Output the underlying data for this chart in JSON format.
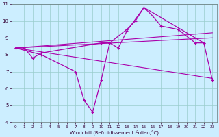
{
  "xlabel": "Windchill (Refroidissement éolien,°C)",
  "bg_color": "#cceeff",
  "line_color": "#aa00aa",
  "grid_color": "#99cccc",
  "ylim": [
    4,
    11
  ],
  "xlim": [
    -0.5,
    23.5
  ],
  "yticks": [
    4,
    5,
    6,
    7,
    8,
    9,
    10,
    11
  ],
  "xticks": [
    0,
    1,
    2,
    3,
    4,
    5,
    6,
    7,
    8,
    9,
    10,
    11,
    12,
    13,
    14,
    15,
    16,
    17,
    18,
    19,
    20,
    21,
    22,
    23
  ],
  "line_zigzag1_x": [
    0,
    1,
    2,
    3,
    10,
    11,
    13,
    14,
    15,
    16,
    17,
    19,
    21,
    22
  ],
  "line_zigzag1_y": [
    8.4,
    8.4,
    7.8,
    8.1,
    8.7,
    8.7,
    9.5,
    10.0,
    10.8,
    10.3,
    9.7,
    9.5,
    8.7,
    8.7
  ],
  "line_zigzag2_x": [
    0,
    3,
    7,
    8,
    9,
    10,
    11,
    12,
    13,
    15,
    22,
    23
  ],
  "line_zigzag2_y": [
    8.4,
    8.0,
    7.0,
    5.3,
    4.6,
    6.5,
    8.7,
    8.4,
    9.4,
    10.8,
    8.7,
    6.5
  ],
  "straight_lines": [
    {
      "x0": 0,
      "y0": 8.4,
      "x1": 23,
      "y1": 6.6
    },
    {
      "x0": 0,
      "y0": 8.4,
      "x1": 23,
      "y1": 9.3
    },
    {
      "x0": 0,
      "y0": 8.4,
      "x1": 23,
      "y1": 9.0
    }
  ]
}
